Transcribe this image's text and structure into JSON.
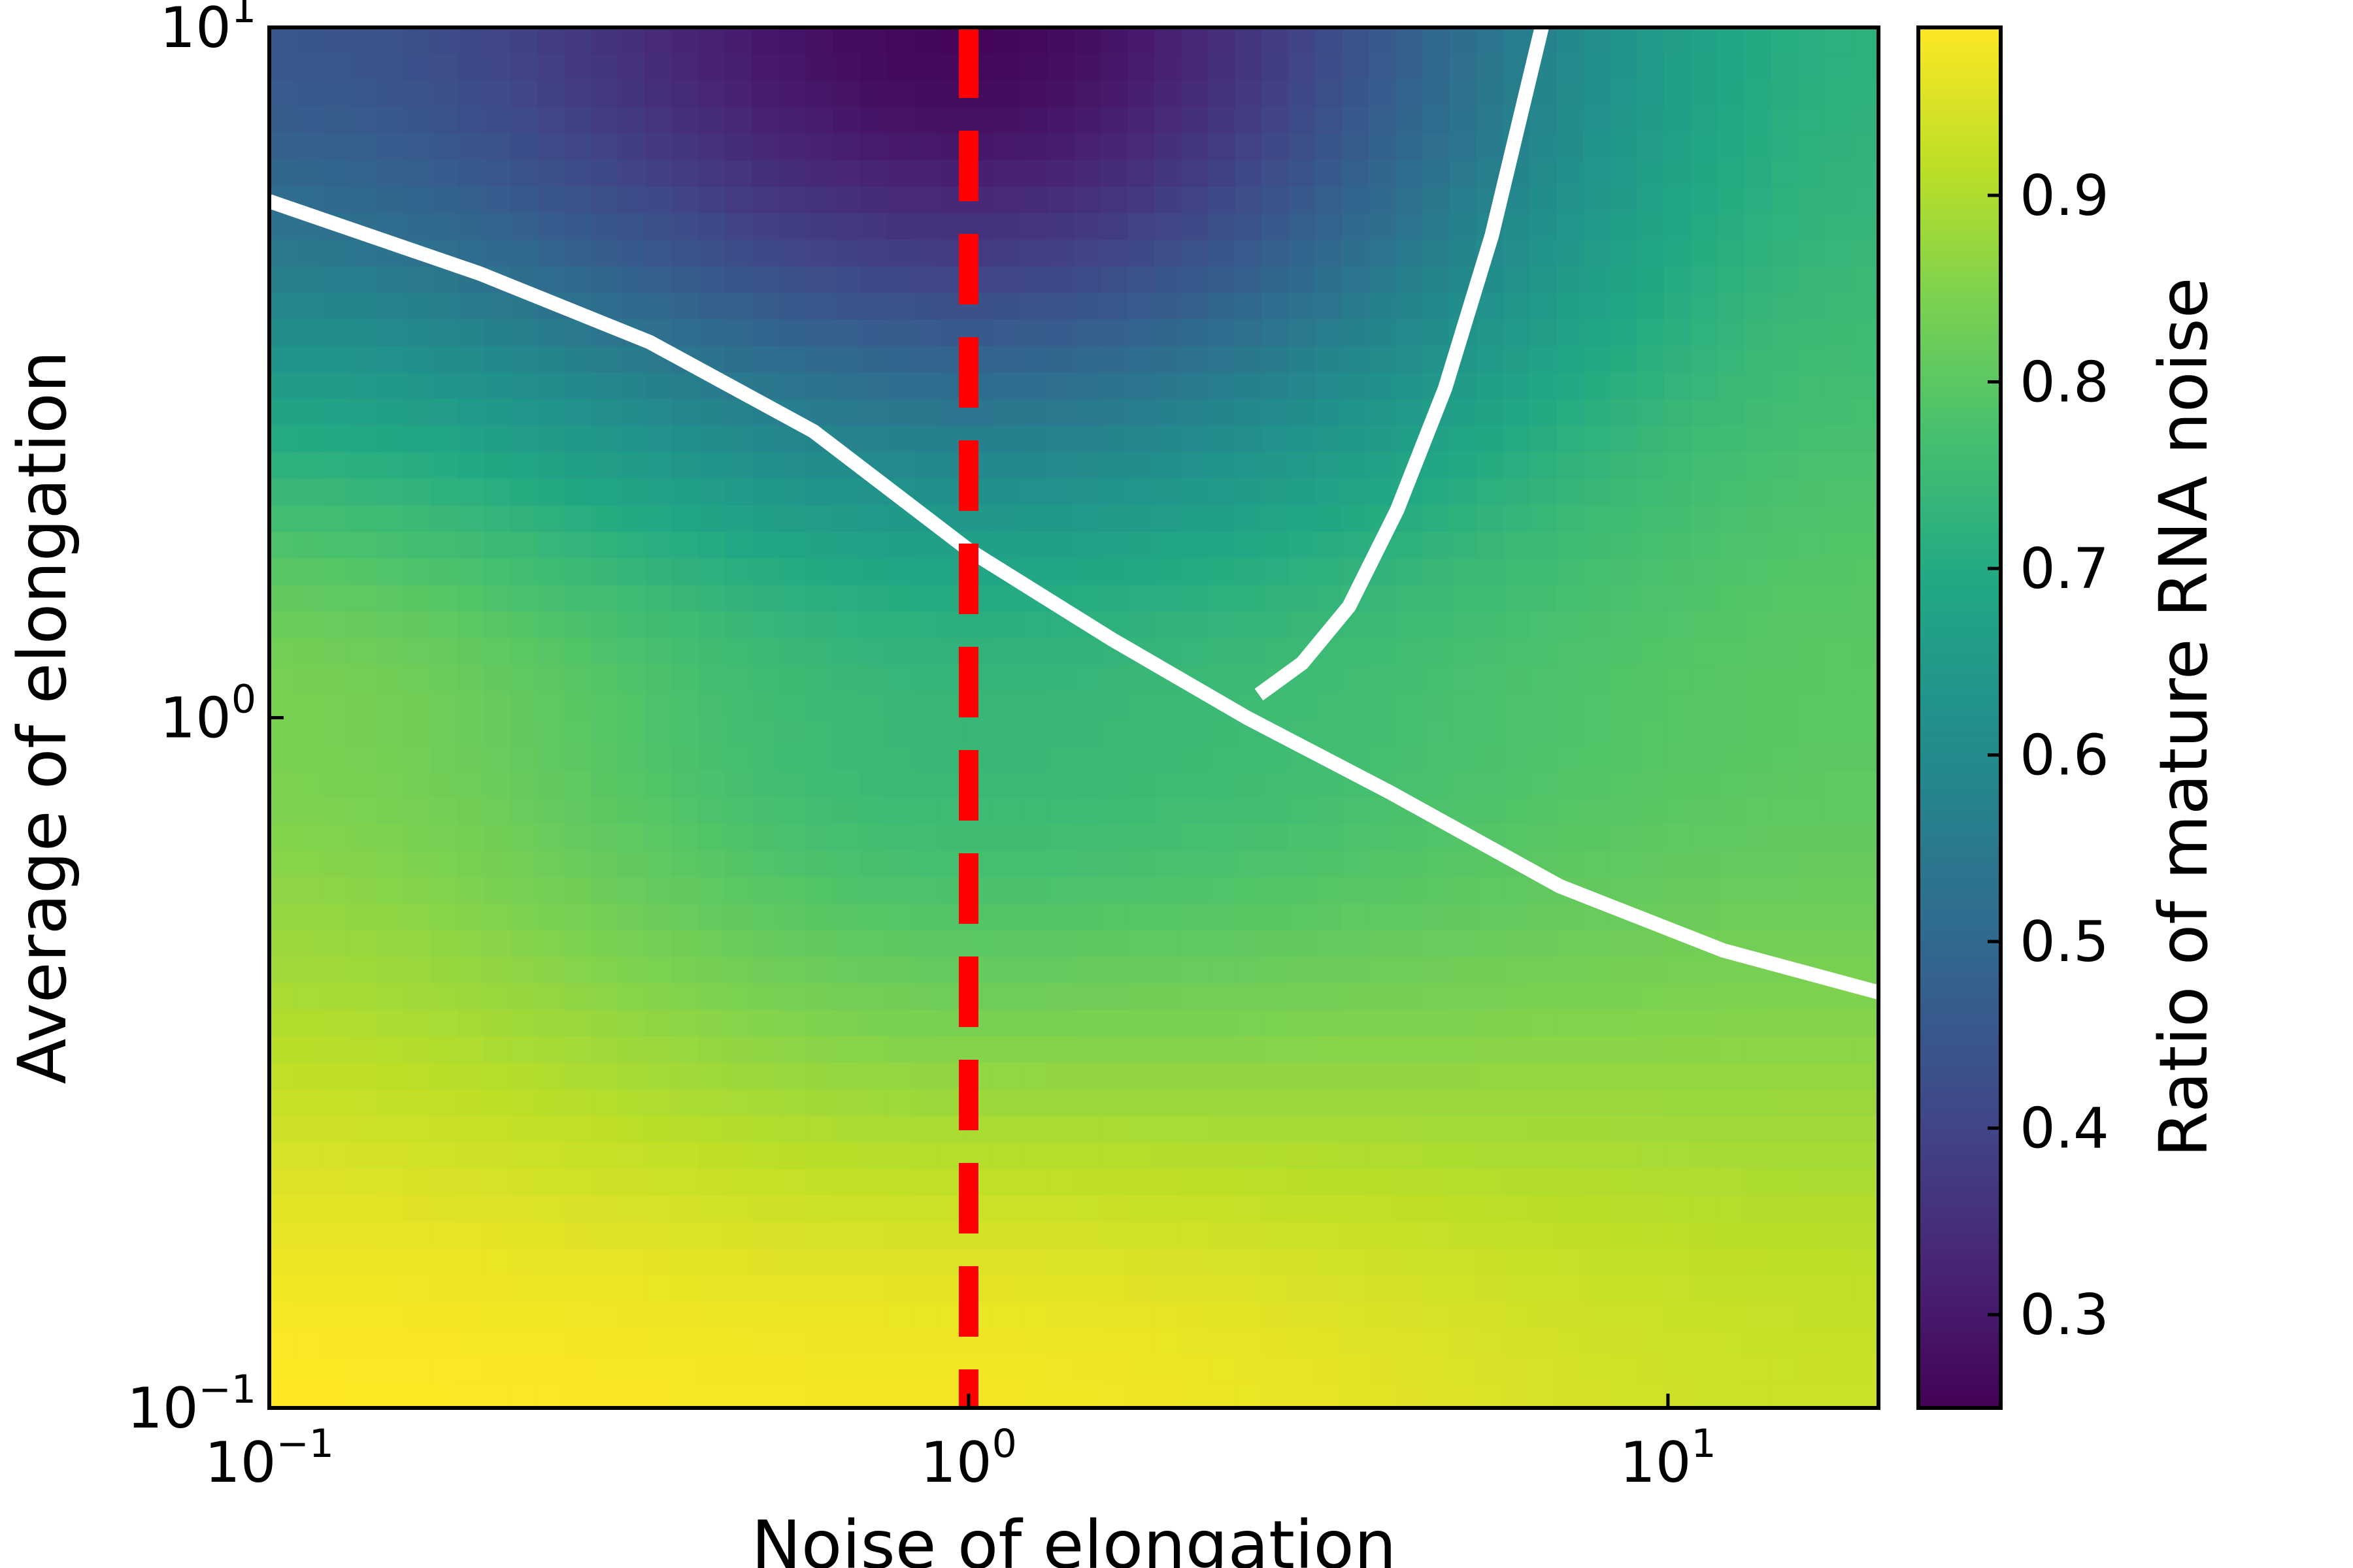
{
  "chart_data": {
    "type": "heatmap",
    "xlabel": "Noise of elongation",
    "ylabel": "Average of elongation",
    "colorbar_label": "Ratio of mature RNA noise",
    "x_scale": "log",
    "y_scale": "log",
    "xlim": [
      0.1,
      20
    ],
    "ylim": [
      0.1,
      10
    ],
    "x_ticks": [
      {
        "value": 0.1,
        "base": "10",
        "exp": "−1"
      },
      {
        "value": 1,
        "base": "10",
        "exp": "0"
      },
      {
        "value": 10,
        "base": "10",
        "exp": "1"
      }
    ],
    "y_ticks": [
      {
        "value": 0.1,
        "base": "10",
        "exp": "−1"
      },
      {
        "value": 1,
        "base": "10",
        "exp": "0"
      },
      {
        "value": 10,
        "base": "10",
        "exp": "1"
      }
    ],
    "colorbar": {
      "colormap": "viridis",
      "vmin": 0.25,
      "vmax": 0.99,
      "ticks": [
        "0.3",
        "0.4",
        "0.5",
        "0.6",
        "0.7",
        "0.8",
        "0.9"
      ]
    },
    "surface_samples": [
      {
        "x": 0.1,
        "y": 10,
        "value": 0.45
      },
      {
        "x": 1,
        "y": 10,
        "value": 0.26
      },
      {
        "x": 20,
        "y": 10,
        "value": 0.72
      },
      {
        "x": 0.1,
        "y": 1,
        "value": 0.84
      },
      {
        "x": 1,
        "y": 1,
        "value": 0.74
      },
      {
        "x": 20,
        "y": 1,
        "value": 0.8
      },
      {
        "x": 0.1,
        "y": 0.1,
        "value": 0.99
      },
      {
        "x": 1,
        "y": 0.1,
        "value": 0.98
      },
      {
        "x": 20,
        "y": 0.1,
        "value": 0.93
      }
    ],
    "contours": [
      {
        "color": "#ffffff",
        "points": [
          [
            0.1,
            5.6
          ],
          [
            0.2,
            4.4
          ],
          [
            0.35,
            3.5
          ],
          [
            0.6,
            2.6
          ],
          [
            1.0,
            1.75
          ],
          [
            1.6,
            1.3
          ],
          [
            2.5,
            1.0
          ],
          [
            4.0,
            0.78
          ],
          [
            7.0,
            0.57
          ],
          [
            12.0,
            0.46
          ],
          [
            20.0,
            0.4
          ]
        ]
      },
      {
        "color": "#ffffff",
        "points": [
          [
            2.6,
            1.08
          ],
          [
            3.0,
            1.2
          ],
          [
            3.5,
            1.45
          ],
          [
            4.1,
            2.0
          ],
          [
            4.8,
            3.0
          ],
          [
            5.6,
            5.0
          ],
          [
            6.6,
            10.0
          ]
        ]
      }
    ],
    "reference_line": {
      "x": 1,
      "color": "#ff0000",
      "style": "dashed"
    }
  }
}
